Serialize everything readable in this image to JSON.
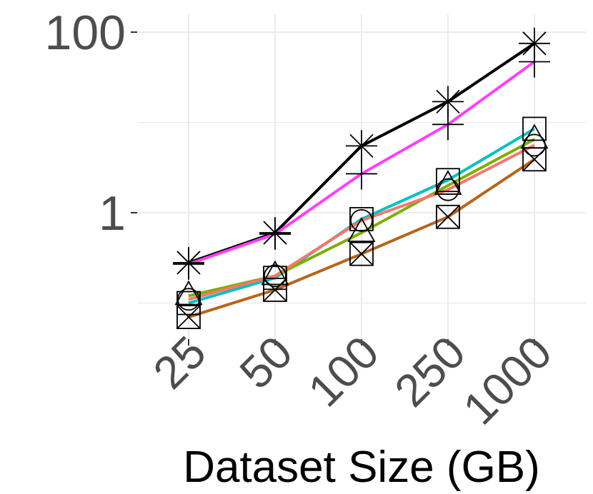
{
  "chart_data": {
    "type": "line",
    "title": "",
    "xlabel": "Dataset Size (GB)",
    "ylabel": "",
    "categories": [
      "25",
      "50",
      "100",
      "250",
      "1000"
    ],
    "y_scale": "log10",
    "ylim": [
      0.07,
      150
    ],
    "y_ticks": [
      1,
      100
    ],
    "y_tick_labels": [
      "1",
      "100"
    ],
    "grid": true,
    "legend": "none",
    "series": [
      {
        "color": "#000000",
        "marker": "asterisk",
        "values": [
          0.28,
          0.6,
          5.5,
          17,
          75
        ]
      },
      {
        "color": "#ff40ff",
        "marker": "plus",
        "values": [
          0.27,
          0.58,
          2.7,
          9.5,
          47
        ]
      },
      {
        "color": "#00c0c0",
        "marker": "square",
        "values": [
          0.1,
          0.19,
          0.85,
          2.3,
          8.5
        ]
      },
      {
        "color": "#7cae00",
        "marker": "triangle",
        "values": [
          0.12,
          0.2,
          0.6,
          2.0,
          6.5
        ]
      },
      {
        "color": "#f8766d",
        "marker": "circle",
        "values": [
          0.11,
          0.2,
          0.82,
          1.8,
          5.6
        ]
      },
      {
        "color": "#b5651d",
        "marker": "square-x",
        "values": [
          0.07,
          0.14,
          0.35,
          0.9,
          3.9
        ]
      }
    ]
  }
}
